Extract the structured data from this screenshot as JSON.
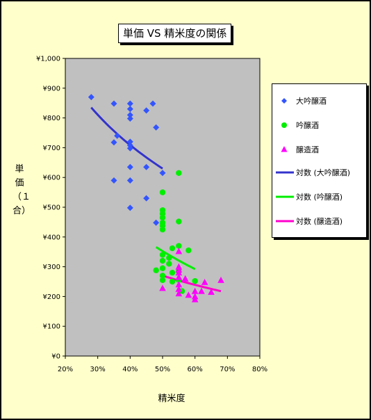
{
  "chart_data": {
    "type": "scatter",
    "title": "単価 VS 精米度の関係",
    "xlabel": "精米度",
    "ylabel": "単価（１合）",
    "xlim": [
      0.2,
      0.8
    ],
    "ylim": [
      0,
      1000
    ],
    "x_ticks": [
      "20%",
      "30%",
      "40%",
      "50%",
      "60%",
      "70%",
      "80%"
    ],
    "y_ticks": [
      "¥0",
      "¥100",
      "¥200",
      "¥300",
      "¥400",
      "¥500",
      "¥600",
      "¥700",
      "¥800",
      "¥900",
      "¥1,000"
    ],
    "grid": false,
    "legend_position": "right",
    "series": [
      {
        "name": "大吟醸酒",
        "marker": "diamond",
        "color": "#3355ff",
        "points": [
          [
            0.28,
            870
          ],
          [
            0.35,
            848
          ],
          [
            0.4,
            848
          ],
          [
            0.4,
            830
          ],
          [
            0.4,
            810
          ],
          [
            0.4,
            798
          ],
          [
            0.45,
            825
          ],
          [
            0.47,
            848
          ],
          [
            0.48,
            768
          ],
          [
            0.36,
            740
          ],
          [
            0.35,
            718
          ],
          [
            0.4,
            720
          ],
          [
            0.4,
            708
          ],
          [
            0.4,
            698
          ],
          [
            0.4,
            635
          ],
          [
            0.45,
            635
          ],
          [
            0.5,
            615
          ],
          [
            0.35,
            590
          ],
          [
            0.4,
            590
          ],
          [
            0.45,
            530
          ],
          [
            0.4,
            498
          ],
          [
            0.48,
            448
          ]
        ]
      },
      {
        "name": "吟醸酒",
        "marker": "circle",
        "color": "#00ee00",
        "points": [
          [
            0.55,
            615
          ],
          [
            0.5,
            550
          ],
          [
            0.5,
            490
          ],
          [
            0.5,
            478
          ],
          [
            0.5,
            465
          ],
          [
            0.5,
            448
          ],
          [
            0.55,
            452
          ],
          [
            0.5,
            438
          ],
          [
            0.5,
            425
          ],
          [
            0.55,
            370
          ],
          [
            0.53,
            362
          ],
          [
            0.58,
            355
          ],
          [
            0.5,
            340
          ],
          [
            0.52,
            330
          ],
          [
            0.5,
            320
          ],
          [
            0.52,
            310
          ],
          [
            0.5,
            295
          ],
          [
            0.48,
            288
          ],
          [
            0.55,
            285
          ],
          [
            0.53,
            280
          ],
          [
            0.5,
            270
          ],
          [
            0.5,
            255
          ],
          [
            0.53,
            250
          ],
          [
            0.55,
            255
          ],
          [
            0.6,
            252
          ],
          [
            0.56,
            218
          ]
        ]
      },
      {
        "name": "醸造酒",
        "marker": "triangle",
        "color": "#ff00ff",
        "points": [
          [
            0.55,
            352
          ],
          [
            0.55,
            300
          ],
          [
            0.55,
            290
          ],
          [
            0.55,
            280
          ],
          [
            0.55,
            265
          ],
          [
            0.57,
            260
          ],
          [
            0.55,
            240
          ],
          [
            0.5,
            228
          ],
          [
            0.55,
            225
          ],
          [
            0.55,
            210
          ],
          [
            0.58,
            205
          ],
          [
            0.6,
            218
          ],
          [
            0.6,
            200
          ],
          [
            0.6,
            190
          ],
          [
            0.62,
            218
          ],
          [
            0.63,
            248
          ],
          [
            0.65,
            215
          ],
          [
            0.68,
            255
          ]
        ]
      }
    ],
    "trendlines": [
      {
        "name": "対数 (大吟醸酒)",
        "type": "log",
        "color": "#3333cc",
        "x": [
          0.28,
          0.5
        ],
        "y": [
          835,
          630
        ]
      },
      {
        "name": "対数 (吟醸酒)",
        "type": "log",
        "color": "#00ee00",
        "x": [
          0.48,
          0.6
        ],
        "y": [
          366,
          292
        ]
      },
      {
        "name": "対数 (醸造酒)",
        "type": "log",
        "color": "#ff00cc",
        "x": [
          0.5,
          0.68
        ],
        "y": [
          270,
          218
        ]
      }
    ]
  }
}
